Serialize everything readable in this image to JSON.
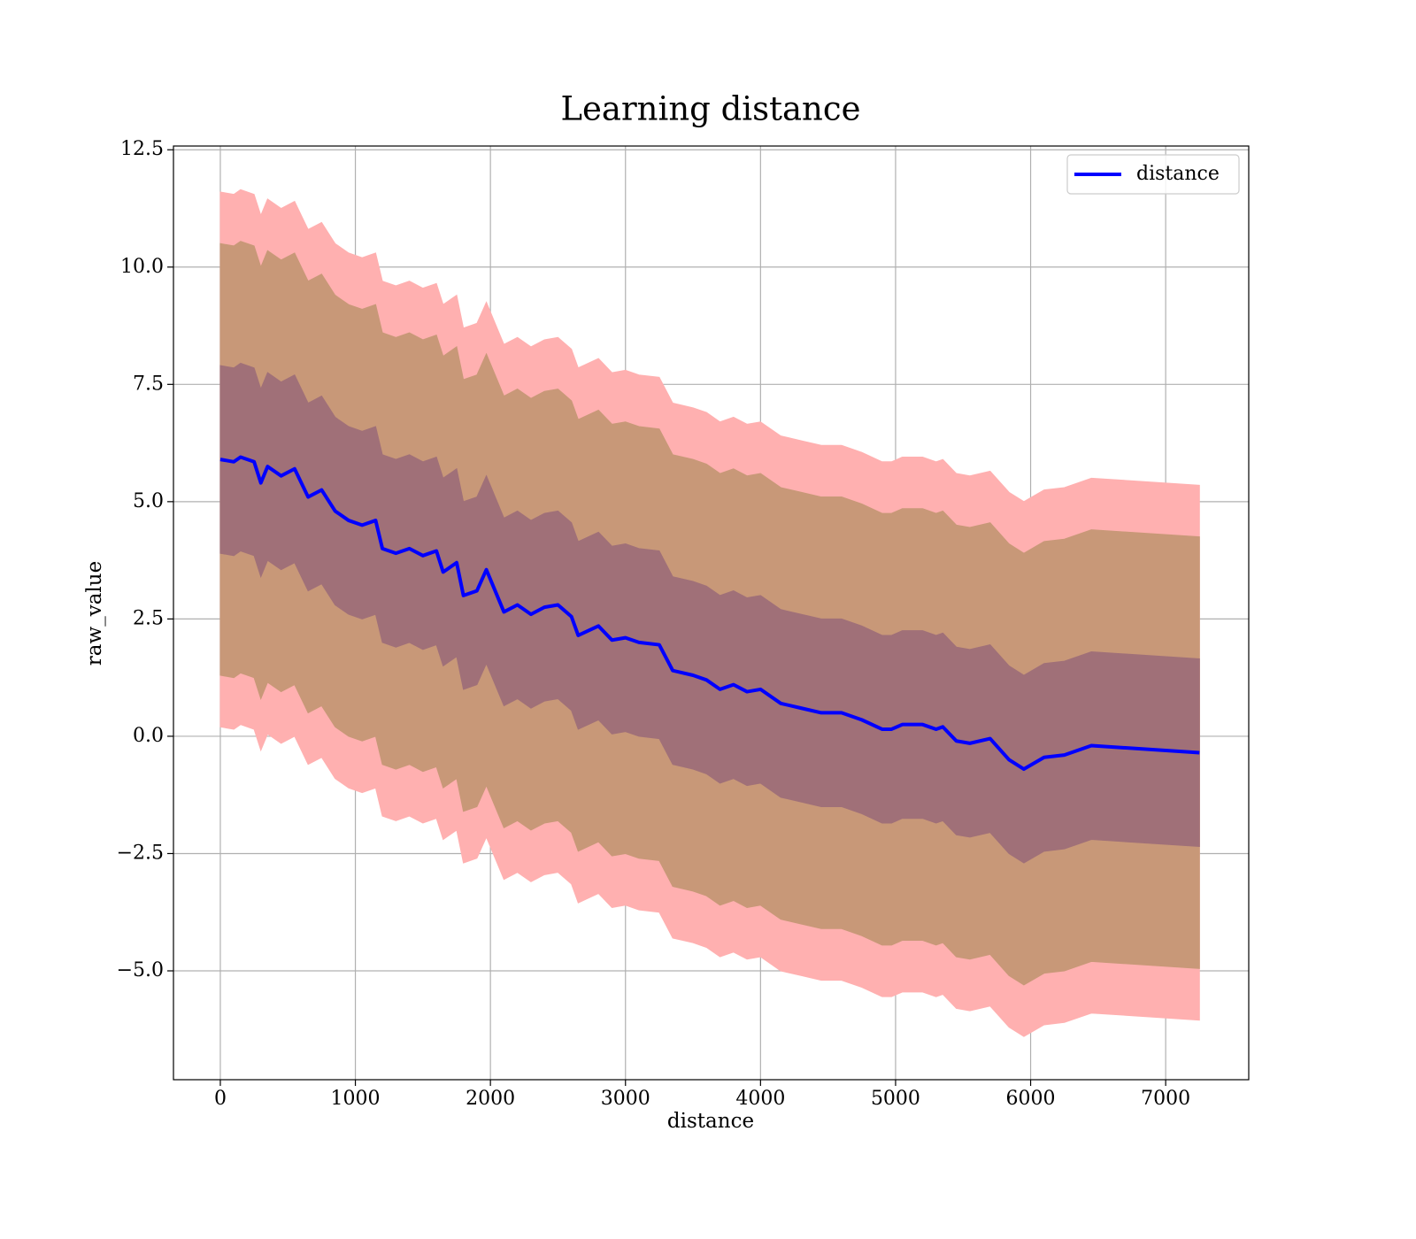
{
  "chart_data": {
    "type": "line",
    "title": "Learning distance",
    "xlabel": "distance",
    "ylabel": "raw_value",
    "xlim": [
      -347,
      7615
    ],
    "ylim": [
      -7.32,
      12.58
    ],
    "xticks": [
      0,
      1000,
      2000,
      3000,
      4000,
      5000,
      6000,
      7000
    ],
    "yticks": [
      12.5,
      {
        "value": 10,
        "label": "10.0"
      },
      7.5,
      {
        "value": 5,
        "label": "5.0"
      },
      2.5,
      {
        "value": 0,
        "label": "0.0"
      },
      {
        "value": -2.5,
        "label": "−2.5"
      },
      {
        "value": -5,
        "label": "−5.0"
      }
    ],
    "grid": true,
    "legend": "upper right",
    "x": [
      0,
      100,
      150,
      250,
      300,
      350,
      450,
      550,
      650,
      750,
      850,
      950,
      1050,
      1150,
      1200,
      1300,
      1400,
      1500,
      1600,
      1650,
      1750,
      1800,
      1900,
      1970,
      2100,
      2200,
      2300,
      2400,
      2500,
      2600,
      2650,
      2800,
      2900,
      3000,
      3100,
      3250,
      3350,
      3500,
      3600,
      3700,
      3800,
      3900,
      4000,
      4150,
      4300,
      4450,
      4600,
      4750,
      4900,
      4970,
      5050,
      5200,
      5300,
      5350,
      5450,
      5550,
      5700,
      5840,
      5950,
      6100,
      6250,
      6450,
      7250
    ],
    "series": [
      {
        "name": "distance",
        "color": "#0000ff",
        "values": [
          5.9,
          5.85,
          5.95,
          5.85,
          5.4,
          5.75,
          5.55,
          5.7,
          5.1,
          5.25,
          4.8,
          4.6,
          4.5,
          4.6,
          4.0,
          3.9,
          4.0,
          3.85,
          3.95,
          3.5,
          3.7,
          3.0,
          3.1,
          3.55,
          2.65,
          2.8,
          2.6,
          2.75,
          2.8,
          2.55,
          2.15,
          2.35,
          2.05,
          2.1,
          2.0,
          1.95,
          1.4,
          1.3,
          1.2,
          1.0,
          1.1,
          0.95,
          1.0,
          0.7,
          0.6,
          0.5,
          0.5,
          0.35,
          0.15,
          0.15,
          0.25,
          0.25,
          0.15,
          0.2,
          -0.1,
          -0.15,
          -0.05,
          -0.5,
          -0.7,
          -0.45,
          -0.4,
          -0.2,
          -0.35
        ]
      }
    ],
    "bands": [
      {
        "color": "#ffb0b0",
        "upper": [
          11.6,
          11.55,
          11.65,
          11.55,
          11.1,
          11.45,
          11.25,
          11.4,
          10.8,
          10.95,
          10.5,
          10.3,
          10.2,
          10.3,
          9.7,
          9.6,
          9.7,
          9.55,
          9.65,
          9.2,
          9.4,
          8.7,
          8.8,
          9.25,
          8.35,
          8.5,
          8.3,
          8.45,
          8.5,
          8.25,
          7.85,
          8.05,
          7.75,
          7.8,
          7.7,
          7.65,
          7.1,
          7.0,
          6.9,
          6.7,
          6.8,
          6.65,
          6.7,
          6.4,
          6.3,
          6.2,
          6.2,
          6.05,
          5.85,
          5.85,
          5.95,
          5.95,
          5.85,
          5.9,
          5.6,
          5.55,
          5.65,
          5.2,
          5.0,
          5.25,
          5.3,
          5.5,
          5.35
        ],
        "lower": [
          0.2,
          0.15,
          0.25,
          0.15,
          -0.3,
          0.05,
          -0.15,
          0.0,
          -0.6,
          -0.45,
          -0.9,
          -1.1,
          -1.2,
          -1.1,
          -1.7,
          -1.8,
          -1.7,
          -1.85,
          -1.75,
          -2.2,
          -2.0,
          -2.7,
          -2.6,
          -2.15,
          -3.05,
          -2.9,
          -3.1,
          -2.95,
          -2.9,
          -3.15,
          -3.55,
          -3.35,
          -3.65,
          -3.6,
          -3.7,
          -3.75,
          -4.3,
          -4.4,
          -4.5,
          -4.7,
          -4.6,
          -4.75,
          -4.7,
          -5.0,
          -5.1,
          -5.2,
          -5.2,
          -5.35,
          -5.55,
          -5.55,
          -5.45,
          -5.45,
          -5.55,
          -5.5,
          -5.8,
          -5.85,
          -5.75,
          -6.2,
          -6.4,
          -6.15,
          -6.1,
          -5.9,
          -6.05
        ]
      },
      {
        "color": "#c89878",
        "upper": [
          10.5,
          10.45,
          10.55,
          10.45,
          10.0,
          10.35,
          10.15,
          10.3,
          9.7,
          9.85,
          9.4,
          9.2,
          9.1,
          9.2,
          8.6,
          8.5,
          8.6,
          8.45,
          8.55,
          8.1,
          8.3,
          7.6,
          7.7,
          8.15,
          7.25,
          7.4,
          7.2,
          7.35,
          7.4,
          7.15,
          6.75,
          6.95,
          6.65,
          6.7,
          6.6,
          6.55,
          6.0,
          5.9,
          5.8,
          5.6,
          5.7,
          5.55,
          5.6,
          5.3,
          5.2,
          5.1,
          5.1,
          4.95,
          4.75,
          4.75,
          4.85,
          4.85,
          4.75,
          4.8,
          4.5,
          4.45,
          4.55,
          4.1,
          3.9,
          4.15,
          4.2,
          4.4,
          4.25
        ],
        "lower": [
          1.3,
          1.25,
          1.35,
          1.25,
          0.8,
          1.15,
          0.95,
          1.1,
          0.5,
          0.65,
          0.2,
          0.0,
          -0.1,
          0.0,
          -0.6,
          -0.7,
          -0.6,
          -0.75,
          -0.65,
          -1.1,
          -0.9,
          -1.6,
          -1.5,
          -1.05,
          -1.95,
          -1.8,
          -2.0,
          -1.85,
          -1.8,
          -2.05,
          -2.45,
          -2.25,
          -2.55,
          -2.5,
          -2.6,
          -2.65,
          -3.2,
          -3.3,
          -3.4,
          -3.6,
          -3.5,
          -3.65,
          -3.6,
          -3.9,
          -4.0,
          -4.1,
          -4.1,
          -4.25,
          -4.45,
          -4.45,
          -4.35,
          -4.35,
          -4.45,
          -4.4,
          -4.7,
          -4.75,
          -4.65,
          -5.1,
          -5.3,
          -5.05,
          -5.0,
          -4.8,
          -4.95
        ]
      },
      {
        "color": "#a07078",
        "upper": [
          7.9,
          7.85,
          7.95,
          7.85,
          7.4,
          7.75,
          7.55,
          7.7,
          7.1,
          7.25,
          6.8,
          6.6,
          6.5,
          6.6,
          6.0,
          5.9,
          6.0,
          5.85,
          5.95,
          5.5,
          5.7,
          5.0,
          5.1,
          5.55,
          4.65,
          4.8,
          4.6,
          4.75,
          4.8,
          4.55,
          4.15,
          4.35,
          4.05,
          4.1,
          4.0,
          3.95,
          3.4,
          3.3,
          3.2,
          3.0,
          3.1,
          2.95,
          3.0,
          2.7,
          2.6,
          2.5,
          2.5,
          2.35,
          2.15,
          2.15,
          2.25,
          2.25,
          2.15,
          2.2,
          1.9,
          1.85,
          1.95,
          1.5,
          1.3,
          1.55,
          1.6,
          1.8,
          1.65
        ],
        "lower": [
          3.9,
          3.85,
          3.95,
          3.85,
          3.4,
          3.75,
          3.55,
          3.7,
          3.1,
          3.25,
          2.8,
          2.6,
          2.5,
          2.6,
          2.0,
          1.9,
          2.0,
          1.85,
          1.95,
          1.5,
          1.7,
          1.0,
          1.1,
          1.55,
          0.65,
          0.8,
          0.6,
          0.75,
          0.8,
          0.55,
          0.15,
          0.35,
          0.05,
          0.1,
          0.0,
          -0.05,
          -0.6,
          -0.7,
          -0.8,
          -1.0,
          -0.9,
          -1.05,
          -1.0,
          -1.3,
          -1.4,
          -1.5,
          -1.5,
          -1.65,
          -1.85,
          -1.85,
          -1.75,
          -1.75,
          -1.85,
          -1.8,
          -2.1,
          -2.15,
          -2.05,
          -2.5,
          -2.7,
          -2.45,
          -2.4,
          -2.2,
          -2.35
        ]
      }
    ]
  }
}
